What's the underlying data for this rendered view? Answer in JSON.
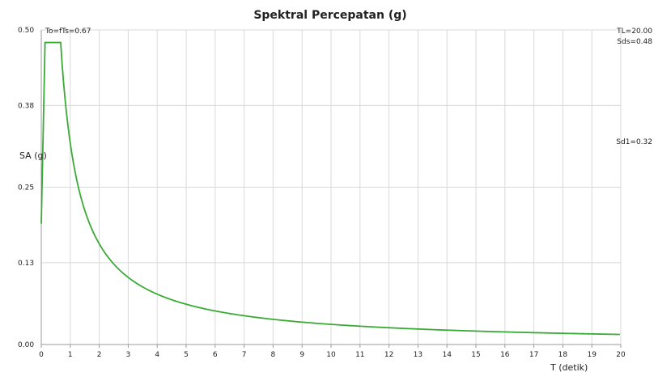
{
  "chart_data": {
    "type": "line",
    "title": "Spektral Percepatan (g)",
    "xlabel": "T (detik)",
    "ylabel": "SA (g)",
    "xlim": [
      0,
      20
    ],
    "ylim": [
      0,
      0.5
    ],
    "x_ticks": [
      "0",
      "1",
      "2",
      "3",
      "4",
      "5",
      "6",
      "7",
      "8",
      "9",
      "10",
      "11",
      "12",
      "13",
      "14",
      "15",
      "16",
      "17",
      "18",
      "19",
      "20"
    ],
    "y_ticks": [
      {
        "value": 0.0,
        "label": "0.00"
      },
      {
        "value": 0.13,
        "label": "0.13"
      },
      {
        "value": 0.25,
        "label": "0.25"
      },
      {
        "value": 0.38,
        "label": "0.38"
      },
      {
        "value": 0.5,
        "label": "0.50"
      }
    ],
    "grid": true,
    "line_color": "#3aaa35",
    "annotations": {
      "top_left": "To=fTs=0.67",
      "top_right": "TL=20.00",
      "sds": "Sds=0.48",
      "sd1": "Sd1=0.32"
    },
    "params": {
      "Sds": 0.48,
      "Sd1": 0.32,
      "To": 0.13,
      "Ts": 0.67,
      "TL": 20.0
    },
    "series": [
      {
        "x": [
          0,
          0.13,
          0.5,
          0.67,
          0.8,
          1.0,
          1.25,
          1.5,
          2,
          2.5,
          3,
          4,
          5,
          6,
          7,
          8,
          9,
          10,
          11,
          12,
          13,
          14,
          15,
          16,
          17,
          18,
          19,
          20
        ],
        "values": [
          0.195,
          0.48,
          0.48,
          0.48,
          0.4,
          0.32,
          0.256,
          0.213,
          0.16,
          0.128,
          0.107,
          0.08,
          0.064,
          0.053,
          0.046,
          0.04,
          0.036,
          0.032,
          0.029,
          0.027,
          0.025,
          0.023,
          0.021,
          0.02,
          0.019,
          0.018,
          0.017,
          0.016
        ]
      }
    ]
  }
}
